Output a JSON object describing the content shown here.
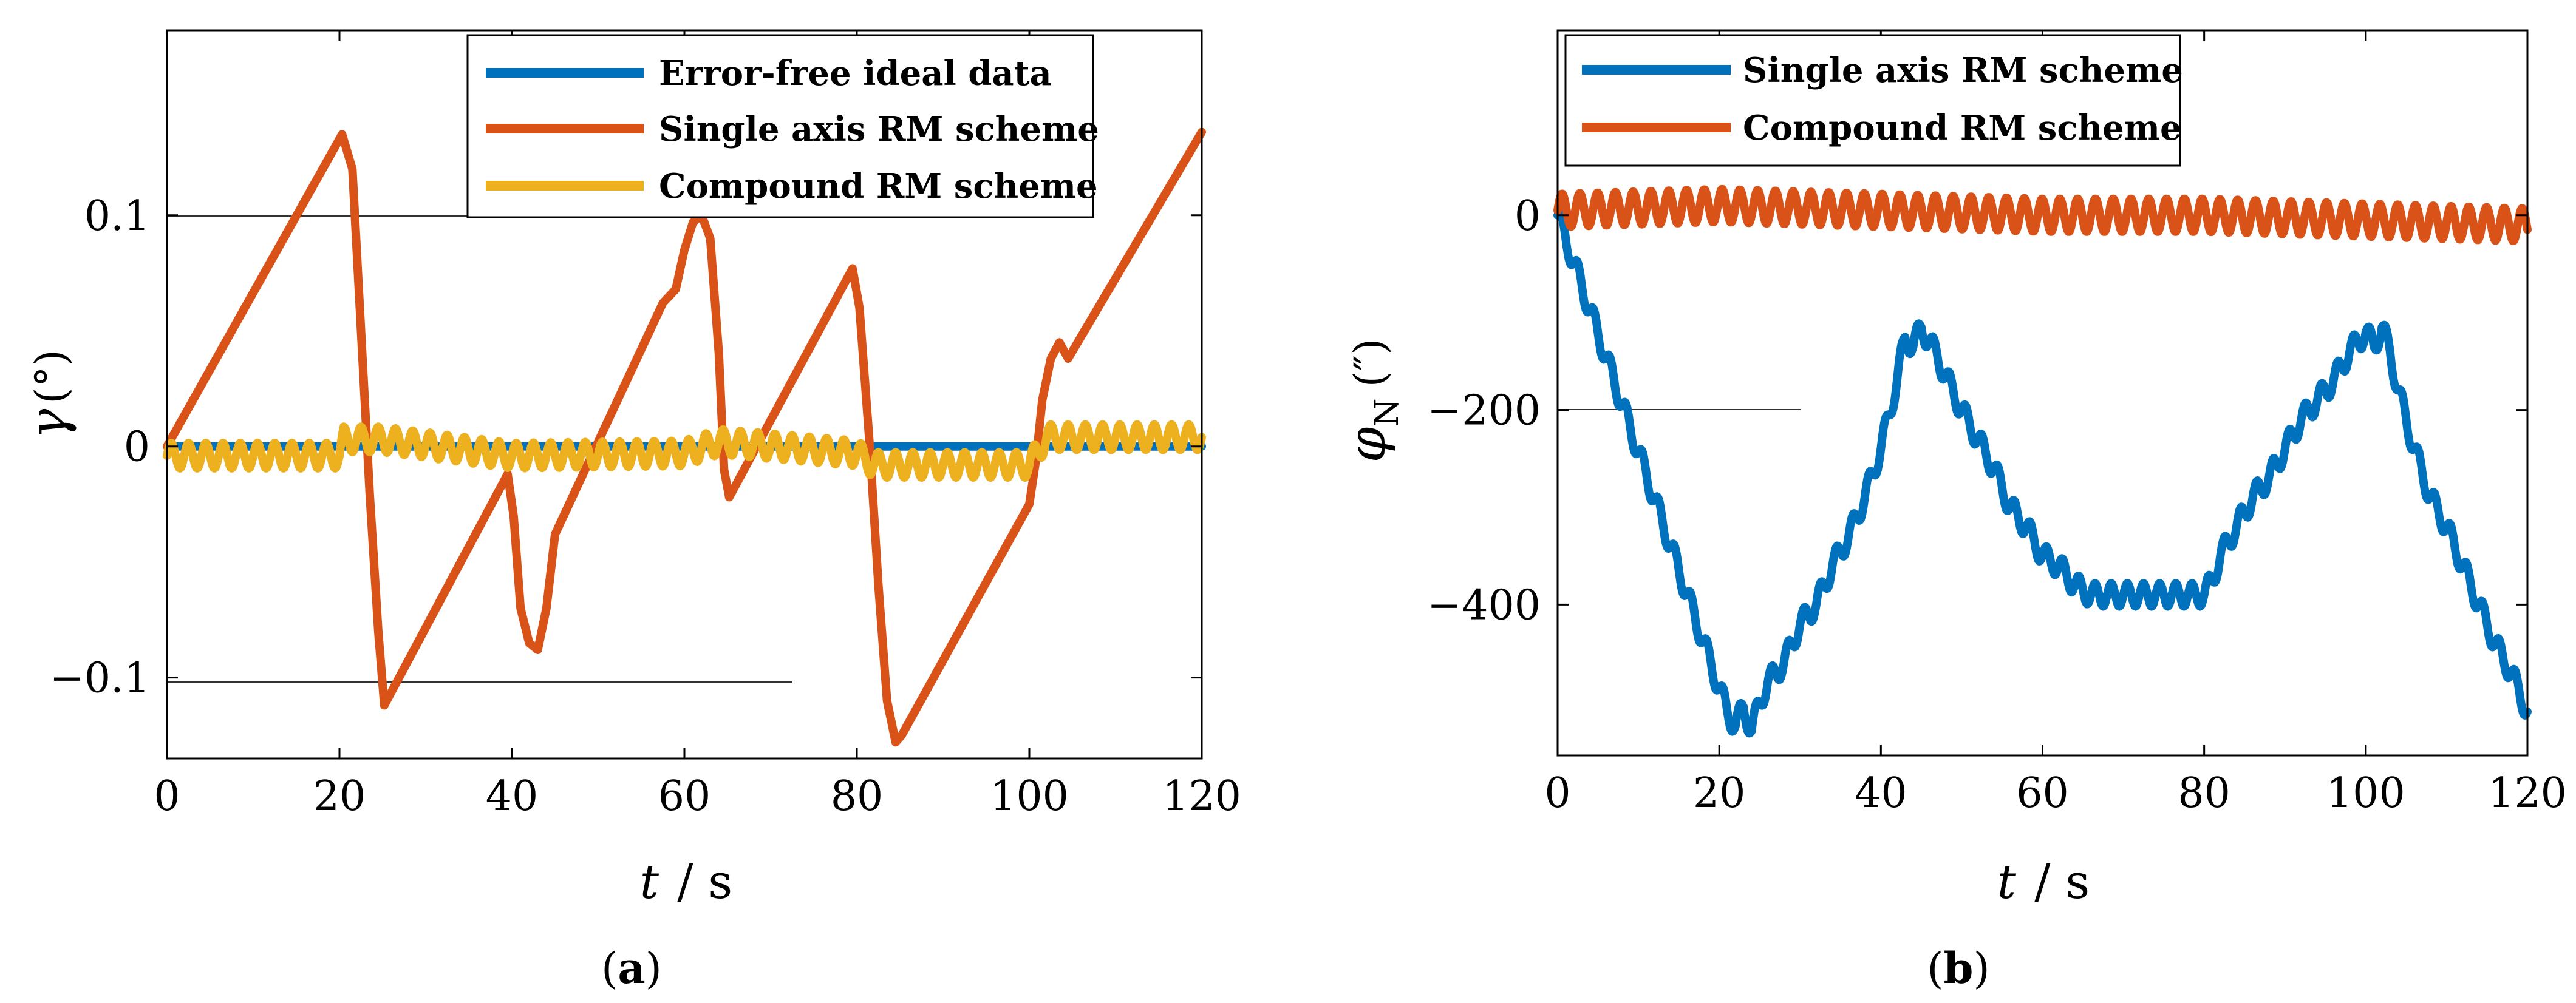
{
  "chart_data": [
    {
      "type": "line",
      "panel_label": "a",
      "title": "",
      "xlabel_var": "t",
      "xlabel_unit": "/ s",
      "ylabel_var": "γ",
      "ylabel_unit": "(°)",
      "xlim": [
        0,
        120
      ],
      "ylim": [
        -0.135,
        0.18
      ],
      "xticks": [
        0,
        20,
        40,
        60,
        80,
        100,
        120
      ],
      "xtick_labels": [
        "0",
        "20",
        "40",
        "60",
        "80",
        "100",
        "120"
      ],
      "yticks": [
        -0.1,
        0,
        0.1
      ],
      "ytick_labels": [
        "−0.1",
        "0",
        "0.1"
      ],
      "grid": "none",
      "legend_position": "top-right",
      "series": [
        {
          "name": "Error-free ideal data",
          "color": "#0072BD",
          "points": [
            [
              0,
              0
            ],
            [
              120,
              0
            ]
          ]
        },
        {
          "name": "Single axis RM scheme",
          "color": "#D95319",
          "points": [
            [
              0,
              0
            ],
            [
              20.3,
              0.135
            ],
            [
              21.5,
              0.12
            ],
            [
              22.5,
              0.05
            ],
            [
              23.5,
              -0.02
            ],
            [
              24.5,
              -0.08
            ],
            [
              25.2,
              -0.112
            ],
            [
              39.5,
              -0.012
            ],
            [
              40.2,
              -0.03
            ],
            [
              41,
              -0.07
            ],
            [
              42,
              -0.085
            ],
            [
              43,
              -0.088
            ],
            [
              44,
              -0.07
            ],
            [
              45,
              -0.038
            ],
            [
              57.5,
              0.062
            ],
            [
              59,
              0.068
            ],
            [
              60,
              0.085
            ],
            [
              61,
              0.097
            ],
            [
              62,
              0.1
            ],
            [
              63,
              0.09
            ],
            [
              64,
              0.04
            ],
            [
              64.6,
              -0.01
            ],
            [
              65.2,
              -0.022
            ],
            [
              79.5,
              0.077
            ],
            [
              80.3,
              0.06
            ],
            [
              81.5,
              0.0
            ],
            [
              82.5,
              -0.06
            ],
            [
              83.5,
              -0.11
            ],
            [
              84.5,
              -0.128
            ],
            [
              85.2,
              -0.125
            ],
            [
              100,
              -0.025
            ],
            [
              100.8,
              -0.005
            ],
            [
              101.5,
              0.02
            ],
            [
              102.5,
              0.038
            ],
            [
              103.5,
              0.045
            ],
            [
              104.5,
              0.038
            ],
            [
              120,
              0.136
            ]
          ]
        },
        {
          "name": "Compound RM scheme",
          "color": "#EDB120",
          "points": [
            [
              0,
              -0.004
            ],
            [
              20,
              -0.004
            ],
            [
              20.5,
              0.003
            ],
            [
              25,
              0.003
            ],
            [
              40,
              -0.004
            ],
            [
              60,
              -0.003
            ],
            [
              64,
              0.002
            ],
            [
              80,
              -0.003
            ],
            [
              82,
              -0.008
            ],
            [
              100,
              -0.008
            ],
            [
              102,
              0.004
            ],
            [
              120,
              0.004
            ]
          ],
          "oscillation_amplitude": 0.0055,
          "oscillation_period": 2.0
        }
      ],
      "legend_entries": [
        "Error-free ideal data",
        "Single axis RM scheme",
        "Compound RM scheme"
      ]
    },
    {
      "type": "line",
      "panel_label": "b",
      "title": "",
      "xlabel_var": "t",
      "xlabel_unit": "/ s",
      "ylabel_var": "φ",
      "ylabel_sub": "N",
      "ylabel_unit": "(″)",
      "xlim": [
        0,
        120
      ],
      "ylim": [
        -555,
        190
      ],
      "xticks": [
        0,
        20,
        40,
        60,
        80,
        100,
        120
      ],
      "xtick_labels": [
        "0",
        "20",
        "40",
        "60",
        "80",
        "100",
        "120"
      ],
      "yticks": [
        -400,
        -200,
        0
      ],
      "ytick_labels": [
        "−400",
        "−200",
        "0"
      ],
      "grid": "none",
      "legend_position": "top-left",
      "series": [
        {
          "name": "Single axis RM scheme",
          "color": "#0072BD",
          "points": [
            [
              0,
              0
            ],
            [
              21,
              -510
            ],
            [
              22,
              -525
            ],
            [
              23,
              -505
            ],
            [
              24,
              -530
            ],
            [
              25,
              -500
            ],
            [
              26,
              -480
            ],
            [
              28,
              -460
            ],
            [
              30,
              -420
            ],
            [
              32,
              -400
            ],
            [
              34,
              -360
            ],
            [
              36,
              -330
            ],
            [
              38,
              -290
            ],
            [
              40,
              -240
            ],
            [
              42,
              -170
            ],
            [
              43,
              -125
            ],
            [
              44,
              -135
            ],
            [
              45,
              -115
            ],
            [
              46,
              -130
            ],
            [
              47,
              -145
            ],
            [
              48,
              -165
            ],
            [
              50,
              -200
            ],
            [
              52,
              -230
            ],
            [
              54,
              -260
            ],
            [
              56,
              -300
            ],
            [
              58,
              -320
            ],
            [
              60,
              -350
            ],
            [
              62,
              -360
            ],
            [
              64,
              -380
            ],
            [
              66,
              -390
            ],
            [
              70,
              -390
            ],
            [
              75,
              -390
            ],
            [
              80,
              -390
            ],
            [
              81,
              -375
            ],
            [
              82,
              -350
            ],
            [
              84,
              -320
            ],
            [
              86,
              -290
            ],
            [
              88,
              -270
            ],
            [
              90,
              -240
            ],
            [
              92,
              -210
            ],
            [
              94,
              -190
            ],
            [
              96,
              -170
            ],
            [
              98,
              -140
            ],
            [
              100,
              -120
            ],
            [
              101,
              -135
            ],
            [
              102,
              -115
            ],
            [
              103,
              -140
            ],
            [
              104,
              -180
            ],
            [
              106,
              -240
            ],
            [
              108,
              -290
            ],
            [
              110,
              -320
            ],
            [
              112,
              -360
            ],
            [
              114,
              -400
            ],
            [
              116,
              -440
            ],
            [
              118,
              -470
            ],
            [
              120,
              -510
            ]
          ],
          "oscillation_amplitude": 12,
          "oscillation_period": 2.0
        },
        {
          "name": "Compound RM scheme",
          "color": "#D95319",
          "points": [
            [
              0,
              5
            ],
            [
              20,
              10
            ],
            [
              40,
              5
            ],
            [
              60,
              0
            ],
            [
              80,
              0
            ],
            [
              100,
              -5
            ],
            [
              120,
              -10
            ]
          ],
          "oscillation_amplitude": 17,
          "oscillation_period": 2.2
        }
      ],
      "legend_entries": [
        "Single axis RM scheme",
        "Compound RM scheme"
      ]
    }
  ]
}
